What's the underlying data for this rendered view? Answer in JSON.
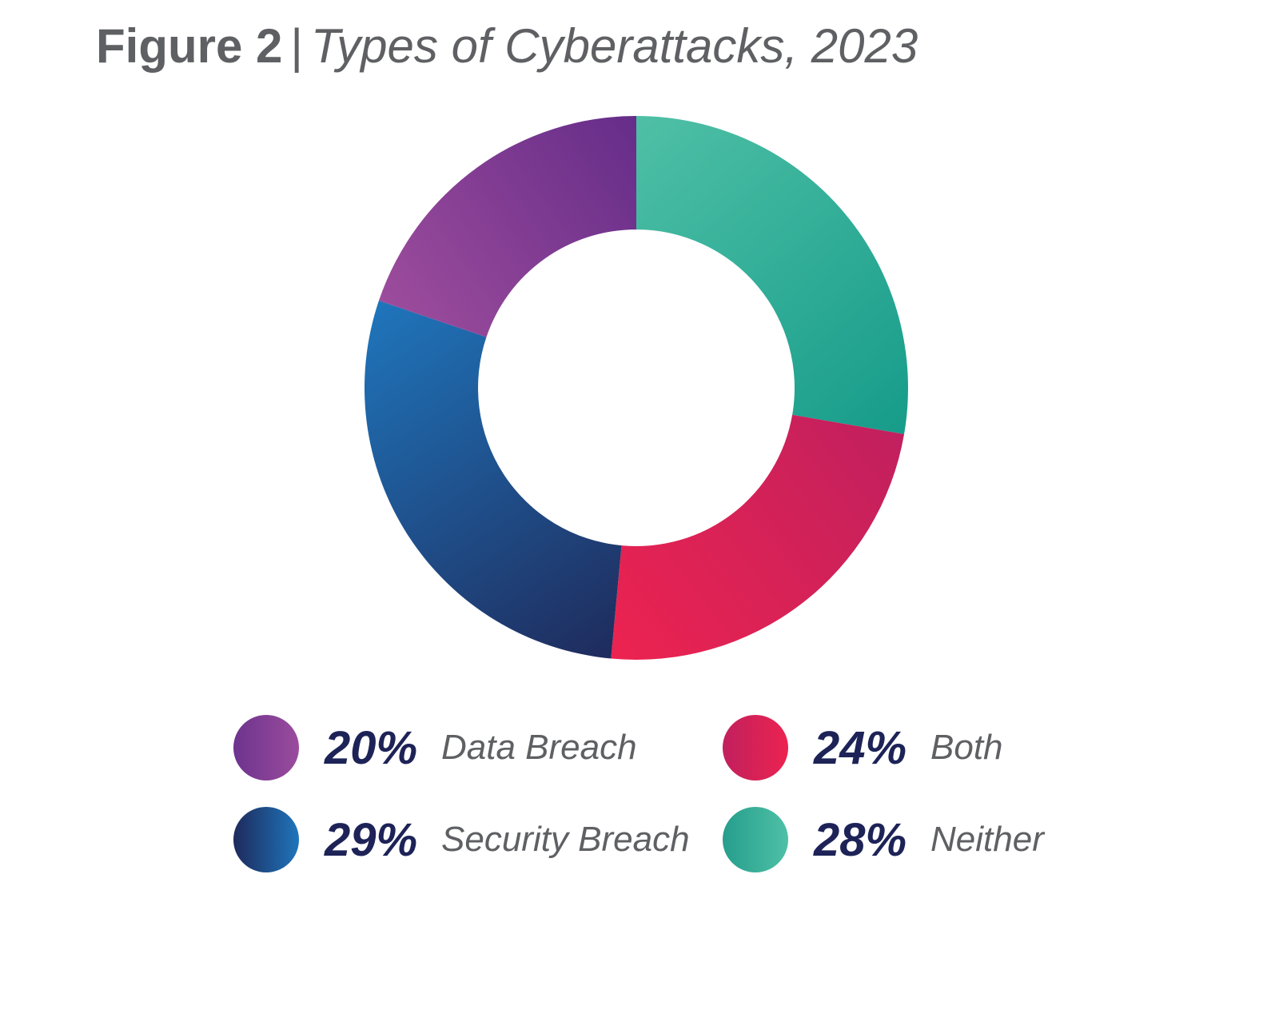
{
  "chart_data": {
    "type": "pie",
    "variant": "donut",
    "title_prefix": "Figure 2",
    "title_separator": "|",
    "title": "Types of Cyberattacks, 2023",
    "slices": [
      {
        "label": "Neither",
        "value": 28,
        "display": "28%",
        "color_start": "#4fc0a6",
        "color_end": "#169c8a"
      },
      {
        "label": "Both",
        "value": 24,
        "display": "24%",
        "color_start": "#c1205e",
        "color_end": "#ec2350"
      },
      {
        "label": "Security Breach",
        "value": 29,
        "display": "29%",
        "color_start": "#1f2b5c",
        "color_end": "#1f75bb"
      },
      {
        "label": "Data Breach",
        "value": 20,
        "display": "20%",
        "color_start": "#9d4c9c",
        "color_end": "#652d89"
      }
    ],
    "legend": [
      {
        "pct": "20%",
        "label": "Data Breach",
        "color_start": "#6d338e",
        "color_end": "#9a4c9d"
      },
      {
        "pct": "24%",
        "label": "Both",
        "color_start": "#c1205e",
        "color_end": "#ec2350"
      },
      {
        "pct": "29%",
        "label": "Security Breach",
        "color_start": "#1e2a5c",
        "color_end": "#1f75bb"
      },
      {
        "pct": "28%",
        "label": "Neither",
        "color_start": "#259e8c",
        "color_end": "#4fc0a6"
      }
    ],
    "legend_position": "bottom"
  }
}
